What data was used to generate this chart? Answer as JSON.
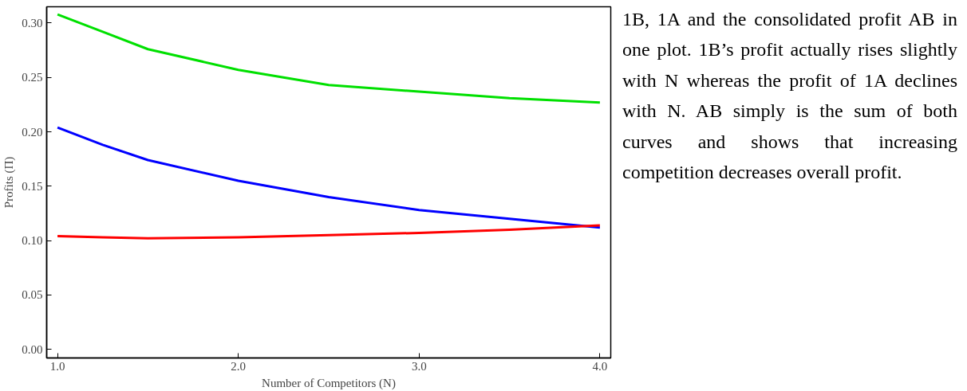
{
  "chart_data": {
    "type": "line",
    "xlabel": "Number of Competitors (N)",
    "ylabel": "Profits (Π)",
    "x": [
      1.0,
      1.25,
      1.5,
      2.0,
      2.5,
      3.0,
      3.5,
      4.0
    ],
    "series": [
      {
        "color": "#00e000",
        "values": [
          0.308,
          0.292,
          0.276,
          0.257,
          0.243,
          0.237,
          0.231,
          0.227
        ]
      },
      {
        "color": "#0000ff",
        "values": [
          0.204,
          0.188,
          0.174,
          0.155,
          0.14,
          0.128,
          0.12,
          0.112
        ]
      },
      {
        "color": "#ff0000",
        "values": [
          0.104,
          0.103,
          0.102,
          0.103,
          0.105,
          0.107,
          0.11,
          0.114
        ]
      }
    ],
    "xlim": [
      0.94,
      4.06
    ],
    "ylim": [
      -0.008,
      0.315
    ],
    "xticks": [
      {
        "value": 1,
        "label": "1.0"
      },
      {
        "value": 2,
        "label": "2.0"
      },
      {
        "value": 3,
        "label": "3.0"
      },
      {
        "value": 4,
        "label": "4.0"
      }
    ],
    "yticks": [
      {
        "value": 0,
        "label": "0.00"
      },
      {
        "value": 0.05,
        "label": "0.05"
      },
      {
        "value": 0.1,
        "label": "0.10"
      },
      {
        "value": 0.15,
        "label": "0.15"
      },
      {
        "value": 0.2,
        "label": "0.20"
      },
      {
        "value": 0.25,
        "label": "0.25"
      },
      {
        "value": 0.3,
        "label": "0.30"
      }
    ],
    "annotations": [
      "1B, 1A and the consolidated profit AB in one plot. 1B’s profit actually rises slightly with N whereas the profit of 1A declines with N. AB simply is the sum of both curves and shows that increasing competition decreases overall profit."
    ]
  }
}
